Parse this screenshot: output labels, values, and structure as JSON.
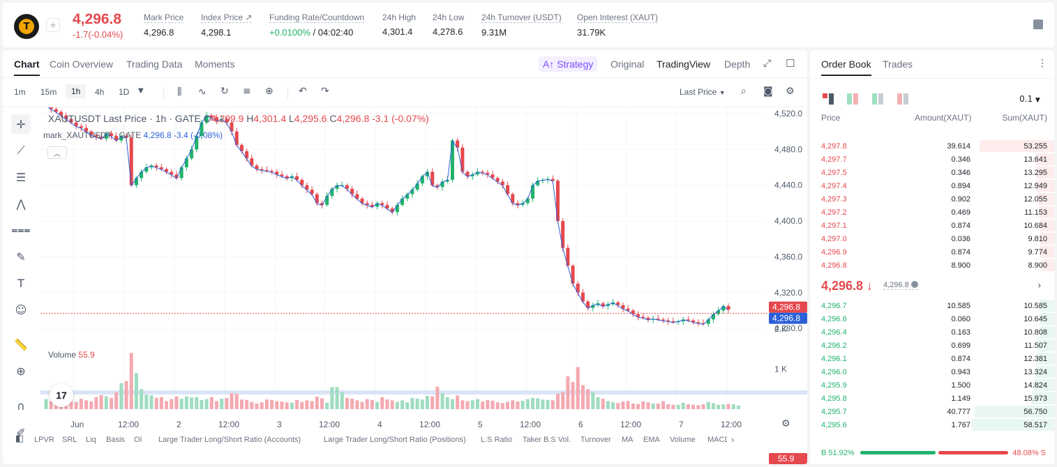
{
  "header": {
    "last_price": "4,296.8",
    "change": "-1.7(-0.04%)",
    "stats": [
      {
        "label": "Mark Price",
        "value": "4,296.8"
      },
      {
        "label": "Index Price ↗",
        "value": "4,298.1"
      },
      {
        "label": "Funding Rate/Countdown",
        "value_green": "+0.0100%",
        "value": " / 04:02:40"
      },
      {
        "label": "24h High",
        "value": "4,301.4"
      },
      {
        "label": "24h Low",
        "value": "4,278.6"
      },
      {
        "label": "24h Turnover (USDT)",
        "value": "9.31M"
      },
      {
        "label": "Open Interest (XAUT)",
        "value": "31.79K"
      }
    ]
  },
  "tabs": [
    "Chart",
    "Coin Overview",
    "Trading Data",
    "Moments"
  ],
  "views": {
    "strategy": "Strategy",
    "original": "Original",
    "tradingview": "TradingView",
    "depth": "Depth"
  },
  "timeframes": [
    "1m",
    "15m",
    "1h",
    "4h",
    "1D"
  ],
  "price_type": "Last Price",
  "legend": {
    "symbol": "XAUTUSDT Last Price · 1h · GATE",
    "o_label": "O",
    "o": "4,299.9",
    "h_label": "H",
    "h": "4,301.4",
    "l_label": "L",
    "l": "4,295.6",
    "c_label": "C",
    "c": "4,296.8",
    "chg": "-3.1 (-0.07%)",
    "mark_symbol": "mark_XAUTUSDT · GATE",
    "mark_value": "4,296.8 -3.4 (-0.08%)"
  },
  "volume_legend": {
    "label": "Volume",
    "value": "55.9"
  },
  "tv_logo": "17",
  "chart_data": {
    "type": "candlestick",
    "x_tick_labels": [
      "Jun",
      "12:00",
      "2",
      "12:00",
      "3",
      "12:00",
      "4",
      "12:00",
      "5",
      "12:00",
      "6",
      "12:00",
      "7",
      "12:00"
    ],
    "y_tick_labels": [
      "4,520.0",
      "4,480.0",
      "4,440.0",
      "4,400.0",
      "4,360.0",
      "4,320.0",
      "4,280.0"
    ],
    "ylim": [
      4270,
      4527
    ],
    "last_price_tag": "4,296.8",
    "mark_price_tag": "4,296.8",
    "volume_tick_labels": [
      "2 K",
      "1 K"
    ],
    "volume_last_tag": "55.9",
    "price_path": [
      4530,
      4525,
      4522,
      4518,
      4514,
      4510,
      4506,
      4504,
      4500,
      4496,
      4494,
      4492,
      4498,
      4495,
      4490,
      4495,
      4493,
      4440,
      4448,
      4455,
      4460,
      4462,
      4460,
      4458,
      4455,
      4452,
      4448,
      4460,
      4470,
      4480,
      4495,
      4510,
      4518,
      4516,
      4512,
      4514,
      4510,
      4500,
      4485,
      4478,
      4470,
      4462,
      4458,
      4457,
      4456,
      4455,
      4452,
      4450,
      4448,
      4450,
      4446,
      4440,
      4435,
      4430,
      4420,
      4418,
      4428,
      4436,
      4440,
      4440,
      4436,
      4430,
      4425,
      4420,
      4418,
      4416,
      4420,
      4418,
      4414,
      4410,
      4418,
      4425,
      4430,
      4435,
      4442,
      4450,
      4455,
      4440,
      4438,
      4444,
      4446,
      4490,
      4482,
      4455,
      4450,
      4452,
      4455,
      4454,
      4452,
      4448,
      4444,
      4440,
      4430,
      4420,
      4418,
      4420,
      4425,
      4440,
      4445,
      4446,
      4447,
      4445,
      4400,
      4370,
      4350,
      4330,
      4320,
      4310,
      4303,
      4306,
      4308,
      4305,
      4307,
      4309,
      4306,
      4302,
      4300,
      4296,
      4293,
      4292,
      4290,
      4291,
      4290,
      4289,
      4288,
      4287,
      4288,
      4290,
      4289,
      4287,
      4286,
      4285,
      4290,
      4296,
      4300,
      4305,
      4301
    ],
    "volume": [
      250,
      200,
      300,
      320,
      280,
      200,
      180,
      260,
      220,
      190,
      300,
      350,
      320,
      280,
      420,
      650,
      700,
      1400,
      900,
      500,
      360,
      340,
      280,
      300,
      200,
      250,
      320,
      260,
      320,
      290,
      300,
      230,
      250,
      300,
      200,
      260,
      280,
      400,
      380,
      240,
      230,
      180,
      140,
      170,
      240,
      230,
      200,
      190,
      170,
      160,
      230,
      180,
      220,
      200,
      310,
      270,
      160,
      550,
      550,
      420,
      280,
      260,
      220,
      180,
      250,
      230,
      180,
      300,
      240,
      220,
      180,
      220,
      170,
      280,
      260,
      240,
      330,
      320,
      560,
      400,
      300,
      250,
      340,
      220,
      200,
      220,
      250,
      190,
      230,
      210,
      170,
      150,
      180,
      220,
      190,
      210,
      250,
      280,
      270,
      240,
      230,
      220,
      380,
      420,
      820,
      680,
      1050,
      600,
      500,
      420,
      300,
      260,
      200,
      170,
      150,
      190,
      200,
      140,
      130,
      190,
      170,
      140,
      140,
      200,
      120,
      110,
      110,
      160,
      120,
      110,
      100,
      120,
      180,
      150,
      110,
      120,
      130,
      120,
      90
    ]
  },
  "indicators": [
    "LPVR",
    "SRL",
    "Liq",
    "Basis",
    "OI",
    "Large Trader Long/Short Ratio (Accounts)",
    "Large Trader Long/Short Ratio (Positions)",
    "L.S Ratio",
    "Taker B.S Vol.",
    "Turnover",
    "MA",
    "EMA",
    "Volume",
    "MACD"
  ],
  "orderbook": {
    "tabs": [
      "Order Book",
      "Trades"
    ],
    "precision": "0.1",
    "headers": [
      "Price",
      "Amount(XAUT)",
      "Sum(XAUT)"
    ],
    "asks": [
      {
        "price": "4,297.8",
        "amount": "39.614",
        "sum": "53.255",
        "depth": 0.91
      },
      {
        "price": "4,297.7",
        "amount": "0.346",
        "sum": "13.641",
        "depth": 0.23
      },
      {
        "price": "4,297.5",
        "amount": "0.346",
        "sum": "13.295",
        "depth": 0.22
      },
      {
        "price": "4,297.4",
        "amount": "0.894",
        "sum": "12.949",
        "depth": 0.22
      },
      {
        "price": "4,297.3",
        "amount": "0.902",
        "sum": "12.055",
        "depth": 0.2
      },
      {
        "price": "4,297.2",
        "amount": "0.469",
        "sum": "11.153",
        "depth": 0.19
      },
      {
        "price": "4,297.1",
        "amount": "0.874",
        "sum": "10.684",
        "depth": 0.18
      },
      {
        "price": "4,297.0",
        "amount": "0.036",
        "sum": "9.810",
        "depth": 0.17
      },
      {
        "price": "4,296.9",
        "amount": "0.874",
        "sum": "9.774",
        "depth": 0.17
      },
      {
        "price": "4,296.8",
        "amount": "8.900",
        "sum": "8.900",
        "depth": 0.15
      }
    ],
    "mid_price": "4,296.8 ↓",
    "mid_mark": "4,296.8",
    "bids": [
      {
        "price": "4,296.7",
        "amount": "10.585",
        "sum": "10.585",
        "depth": 0.18
      },
      {
        "price": "4,296.6",
        "amount": "0.060",
        "sum": "10.645",
        "depth": 0.18
      },
      {
        "price": "4,296.4",
        "amount": "0.163",
        "sum": "10.808",
        "depth": 0.18
      },
      {
        "price": "4,296.2",
        "amount": "0.699",
        "sum": "11.507",
        "depth": 0.2
      },
      {
        "price": "4,296.1",
        "amount": "0.874",
        "sum": "12.381",
        "depth": 0.21
      },
      {
        "price": "4,296.0",
        "amount": "0.943",
        "sum": "13.324",
        "depth": 0.23
      },
      {
        "price": "4,295.9",
        "amount": "1.500",
        "sum": "14.824",
        "depth": 0.25
      },
      {
        "price": "4,295.8",
        "amount": "1.149",
        "sum": "15.973",
        "depth": 0.27
      },
      {
        "price": "4,295.7",
        "amount": "40.777",
        "sum": "56.750",
        "depth": 0.97
      },
      {
        "price": "4,295.6",
        "amount": "1.767",
        "sum": "58.517",
        "depth": 1.0
      }
    ],
    "buy_ratio": "B 51.92%",
    "sell_ratio": "48.08% S"
  },
  "colors": {
    "up": "#20b26c",
    "down": "#e5484d",
    "accent": "#7b4dff",
    "mark": "#2b5fd9"
  }
}
